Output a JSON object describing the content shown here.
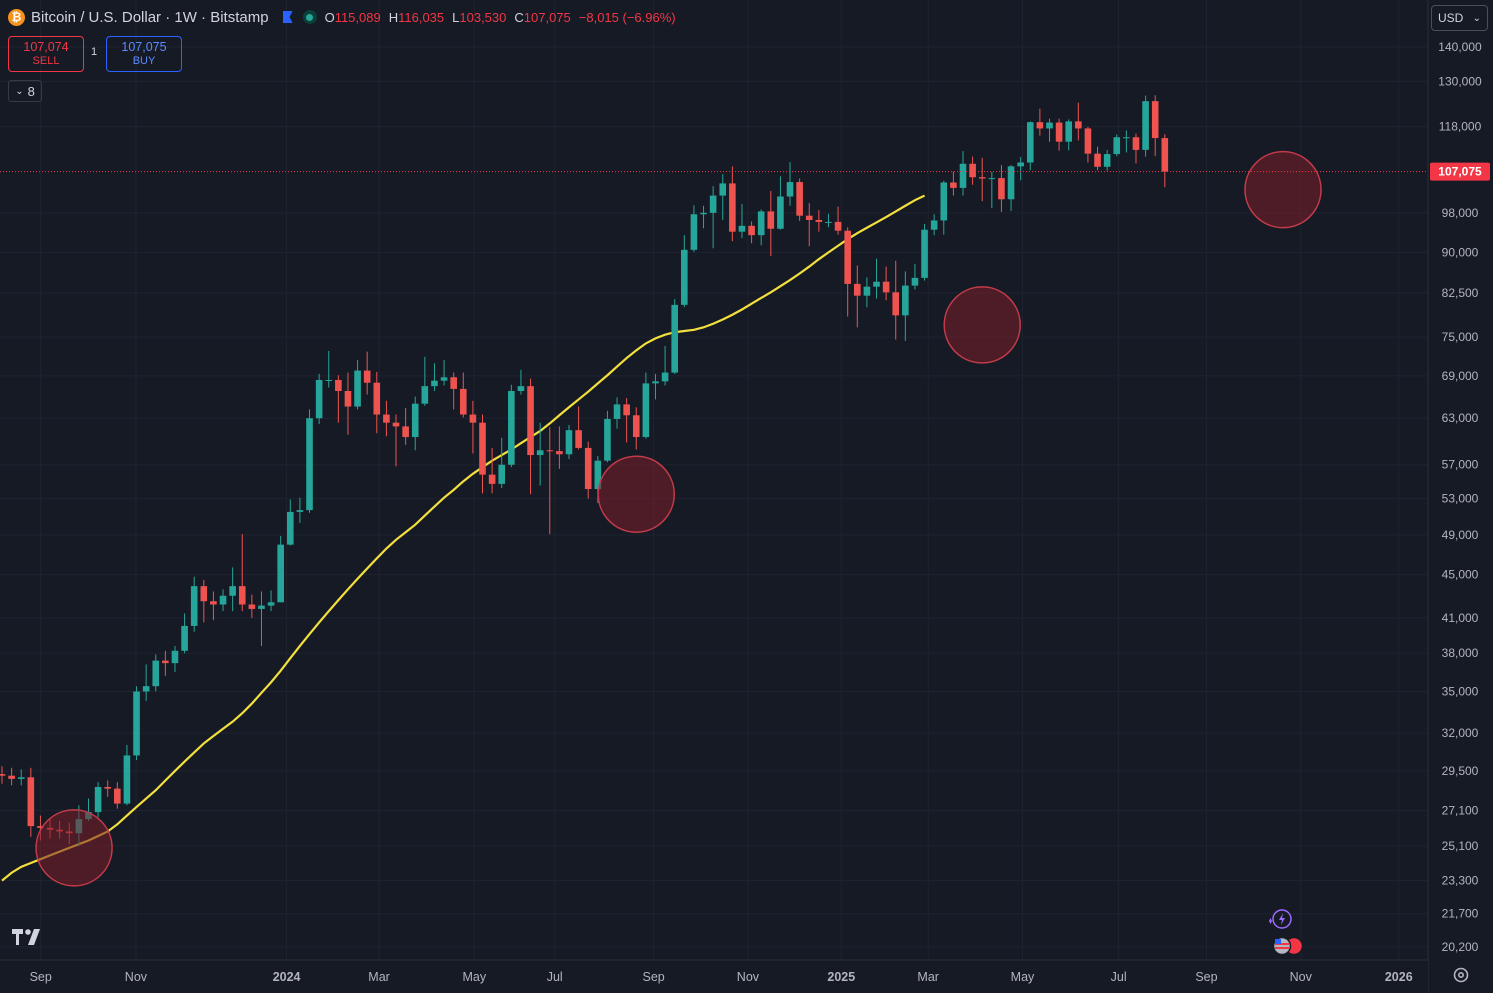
{
  "header": {
    "symbol_title": "Bitcoin / U.S. Dollar · 1W · Bitstamp",
    "coin_glyph": "₿",
    "ohlc": {
      "o_label": "O",
      "o_value": "115,089",
      "h_label": "H",
      "h_value": "116,035",
      "l_label": "L",
      "l_value": "103,530",
      "c_label": "C",
      "c_value": "107,075",
      "change": "−8,015 (−6.96%)"
    }
  },
  "trade": {
    "sell_price": "107,074",
    "sell_label": "SELL",
    "buy_price": "107,075",
    "buy_label": "BUY",
    "quantity": "1"
  },
  "indicators": {
    "count": "8"
  },
  "currency": {
    "selected": "USD"
  },
  "colors": {
    "background": "#161a25",
    "up": "#26a69a",
    "down": "#ef5350",
    "ma_line": "#f3e03d",
    "highlight_fill": "#7b1f2a",
    "highlight_stroke": "#c33b4a",
    "last_price_bg": "#f23645"
  },
  "chart_data": {
    "type": "candlestick",
    "timeframe": "1W",
    "x_ticks": [
      "Sep",
      "Nov",
      "2024",
      "Mar",
      "May",
      "Jul",
      "Sep",
      "Nov",
      "2025",
      "Mar",
      "May",
      "Jul",
      "Sep",
      "Nov",
      "2026"
    ],
    "y_ticks": [
      "140,000",
      "130,000",
      "118,000",
      "98,000",
      "90,000",
      "82,500",
      "75,000",
      "69,000",
      "63,000",
      "57,000",
      "53,000",
      "49,000",
      "45,000",
      "41,000",
      "38,000",
      "35,000",
      "32,000",
      "29,500",
      "27,100",
      "25,100",
      "23,300",
      "21,700",
      "20,200"
    ],
    "y_scale": "log",
    "last_price_label": "107,075",
    "last_price": 107075,
    "candles": [
      [
        29300,
        29200,
        29800,
        28700
      ],
      [
        29200,
        29000,
        29700,
        28600
      ],
      [
        29000,
        29100,
        29600,
        28600
      ],
      [
        29100,
        26200,
        29700,
        25600
      ],
      [
        26200,
        26100,
        26800,
        25400
      ],
      [
        26100,
        26000,
        26600,
        25500
      ],
      [
        26000,
        25900,
        26500,
        25500
      ],
      [
        25900,
        25800,
        26400,
        25200
      ],
      [
        25800,
        26600,
        27400,
        25100
      ],
      [
        26600,
        27000,
        27800,
        26500
      ],
      [
        27000,
        28500,
        28800,
        26700
      ],
      [
        28500,
        28400,
        28900,
        27900
      ],
      [
        28400,
        27500,
        28800,
        27200
      ],
      [
        27500,
        30500,
        31200,
        27400
      ],
      [
        30500,
        35000,
        35400,
        30200
      ],
      [
        35000,
        35400,
        37100,
        34300
      ],
      [
        35400,
        37400,
        37900,
        35000
      ],
      [
        37400,
        37200,
        38200,
        36200
      ],
      [
        37200,
        38200,
        38600,
        36500
      ],
      [
        38200,
        40300,
        41400,
        38000
      ],
      [
        40300,
        43900,
        44800,
        39800
      ],
      [
        43900,
        42500,
        44500,
        40600
      ],
      [
        42500,
        42200,
        43400,
        40800
      ],
      [
        42200,
        43000,
        43600,
        41600
      ],
      [
        43000,
        43900,
        45700,
        41600
      ],
      [
        43900,
        42200,
        49100,
        41600
      ],
      [
        42200,
        41800,
        43100,
        41000
      ],
      [
        41800,
        42100,
        43400,
        38600
      ],
      [
        42100,
        42400,
        43500,
        41600
      ],
      [
        42400,
        48000,
        48900,
        42400
      ],
      [
        48000,
        51500,
        52900,
        47900
      ],
      [
        51500,
        51700,
        53100,
        50300
      ],
      [
        51700,
        63000,
        64200,
        51400
      ],
      [
        63000,
        68400,
        69300,
        62200
      ],
      [
        68400,
        68400,
        72800,
        67300
      ],
      [
        68400,
        66800,
        69100,
        62400
      ],
      [
        66800,
        64600,
        69500,
        60800
      ],
      [
        64600,
        69800,
        71400,
        64200
      ],
      [
        69800,
        68000,
        72700,
        66300
      ],
      [
        68000,
        63500,
        69600,
        61000
      ],
      [
        63500,
        62400,
        65400,
        60600
      ],
      [
        62400,
        61900,
        63500,
        56800
      ],
      [
        61900,
        60500,
        64400,
        59500
      ],
      [
        60500,
        65000,
        66000,
        58800
      ],
      [
        65000,
        67500,
        71900,
        64700
      ],
      [
        67500,
        68300,
        70900,
        66800
      ],
      [
        68300,
        68800,
        71400,
        67600
      ],
      [
        68800,
        67100,
        69500,
        64200
      ],
      [
        67100,
        63500,
        69500,
        63100
      ],
      [
        63500,
        62400,
        65400,
        58400
      ],
      [
        62400,
        55800,
        63500,
        53600
      ],
      [
        55800,
        54700,
        59100,
        53600
      ],
      [
        54700,
        57000,
        60400,
        54200
      ],
      [
        57000,
        66800,
        67700,
        56700
      ],
      [
        66800,
        67500,
        69900,
        66300
      ],
      [
        67500,
        58200,
        68600,
        53500
      ],
      [
        58200,
        58800,
        62400,
        54500
      ],
      [
        58800,
        58700,
        61800,
        49100
      ],
      [
        58700,
        58300,
        61900,
        56500
      ],
      [
        58300,
        61400,
        62100,
        57700
      ],
      [
        61400,
        59100,
        64600,
        58900
      ],
      [
        59100,
        54100,
        59900,
        53000
      ],
      [
        54100,
        57500,
        58100,
        52500
      ],
      [
        57500,
        62900,
        64000,
        57300
      ],
      [
        62900,
        64900,
        65900,
        61600
      ],
      [
        64900,
        63400,
        65800,
        59800
      ],
      [
        63400,
        60500,
        64500,
        58900
      ],
      [
        60500,
        67900,
        69500,
        60300
      ],
      [
        67900,
        68200,
        69300,
        65600
      ],
      [
        68200,
        69500,
        73600,
        67600
      ],
      [
        69500,
        80400,
        81400,
        69300
      ],
      [
        80400,
        90500,
        93400,
        80000
      ],
      [
        90500,
        97700,
        99600,
        90100
      ],
      [
        97700,
        98000,
        99500,
        94800
      ],
      [
        98000,
        101700,
        103800,
        90800
      ],
      [
        101700,
        104400,
        106500,
        96500
      ],
      [
        104400,
        94100,
        108300,
        92200
      ],
      [
        94100,
        95300,
        99900,
        92800
      ],
      [
        95300,
        93400,
        96200,
        91800
      ],
      [
        93400,
        98300,
        98700,
        91400
      ],
      [
        98300,
        94700,
        102700,
        89300
      ],
      [
        94700,
        101500,
        106000,
        94500
      ],
      [
        101500,
        104700,
        109300,
        99500
      ],
      [
        104700,
        97400,
        105500,
        96300
      ],
      [
        97400,
        96500,
        100100,
        91200
      ],
      [
        96500,
        96100,
        98600,
        94100
      ],
      [
        96100,
        96100,
        97800,
        95000
      ],
      [
        96100,
        94300,
        99300,
        93500
      ],
      [
        94300,
        84100,
        95000,
        78400
      ],
      [
        84100,
        82000,
        87500,
        76600
      ],
      [
        82000,
        83600,
        85300,
        80000
      ],
      [
        83600,
        84500,
        88800,
        81500
      ],
      [
        84500,
        82600,
        87300,
        81200
      ],
      [
        82600,
        78600,
        88400,
        74600
      ],
      [
        78600,
        83800,
        86400,
        74400
      ],
      [
        83800,
        85200,
        87800,
        83100
      ],
      [
        85200,
        94500,
        95700,
        84700
      ],
      [
        94500,
        96400,
        97700,
        93400
      ],
      [
        96400,
        104600,
        105000,
        93500
      ],
      [
        104600,
        103400,
        107100,
        101700
      ],
      [
        103400,
        108900,
        111900,
        101700
      ],
      [
        108900,
        105800,
        110600,
        104100
      ],
      [
        105800,
        105500,
        110300,
        100500
      ],
      [
        105500,
        105600,
        107000,
        99000
      ],
      [
        105600,
        100900,
        108600,
        98200
      ],
      [
        100900,
        108300,
        108600,
        98400
      ],
      [
        108300,
        109200,
        110500,
        105100
      ],
      [
        109200,
        119100,
        119300,
        107400
      ],
      [
        119100,
        117500,
        122600,
        115700
      ],
      [
        117500,
        119000,
        120000,
        114200
      ],
      [
        119000,
        114200,
        120000,
        112000
      ],
      [
        114200,
        119300,
        119800,
        112100
      ],
      [
        119300,
        117500,
        124200,
        114500
      ],
      [
        117500,
        111300,
        117900,
        109200
      ],
      [
        111300,
        108200,
        113000,
        107400
      ],
      [
        108200,
        111200,
        112200,
        107300
      ],
      [
        111200,
        115300,
        116000,
        110700
      ],
      [
        115300,
        115300,
        117000,
        111600
      ],
      [
        115300,
        112200,
        116200,
        109000
      ],
      [
        112200,
        124600,
        126100,
        110600
      ],
      [
        124600,
        115100,
        126200,
        110700
      ],
      [
        115089,
        107075,
        116035,
        103530
      ]
    ],
    "series": [
      {
        "name": "",
        "type": "line",
        "values": [
          23300,
          23700,
          24000,
          24200,
          24400,
          24600,
          24800,
          25000,
          25200,
          25400,
          25650,
          25900,
          26300,
          26800,
          27300,
          27800,
          28300,
          28900,
          29500,
          30100,
          30700,
          31300,
          31800,
          32300,
          32800,
          33400,
          34100,
          34900,
          35700,
          36600,
          37600,
          38600,
          39600,
          40600,
          41600,
          42600,
          43600,
          44600,
          45600,
          46600,
          47600,
          48500,
          49300,
          50100,
          51100,
          52100,
          53100,
          54000,
          55000,
          55900,
          56700,
          57500,
          58200,
          58900,
          59700,
          60500,
          61300,
          62300,
          63400,
          64500,
          65600,
          66700,
          67900,
          69100,
          70400,
          71700,
          72900,
          74000,
          74800,
          75400,
          75800,
          76000,
          76200,
          76600,
          77200,
          77900,
          78700,
          79600,
          80600,
          81600,
          82600,
          83700,
          84800,
          86000,
          87300,
          88700,
          90000,
          91300,
          92600,
          93800,
          94900,
          96000,
          97100,
          98300,
          99500,
          100700,
          101700
        ]
      }
    ]
  }
}
